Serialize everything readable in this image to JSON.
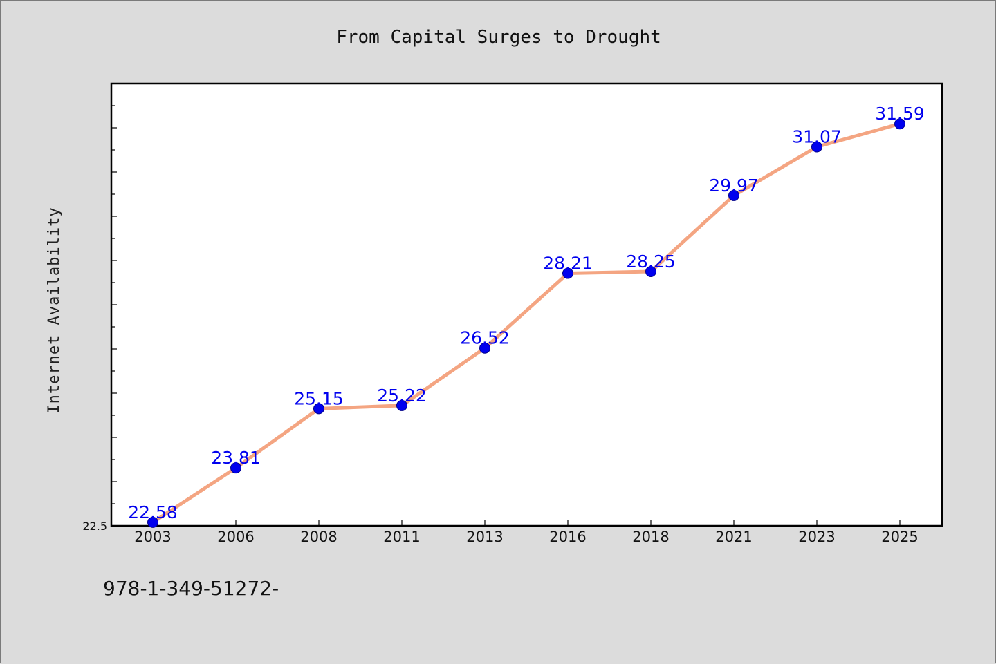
{
  "footer_text": "978-1-349-51272-",
  "chart_data": {
    "type": "line",
    "title": "From Capital Surges to Drought",
    "xlabel": "",
    "ylabel": "Internet Availability",
    "categories": [
      "2003",
      "2006",
      "2008",
      "2011",
      "2013",
      "2016",
      "2018",
      "2021",
      "2023",
      "2025"
    ],
    "series": [
      {
        "values": [
          22.58,
          23.81,
          25.15,
          25.22,
          26.52,
          28.21,
          28.25,
          29.97,
          31.07,
          31.59
        ],
        "line_color": "#f4a582",
        "marker_color": "#0000ee"
      }
    ],
    "ylim": [
      22.5,
      32.5
    ],
    "y_tick_labels": [
      "22.5"
    ],
    "data_labels": [
      "22.58",
      "23.81",
      "25.15",
      "25.22",
      "26.52",
      "28.21",
      "28.25",
      "29.97",
      "31.07",
      "31.59"
    ],
    "grid": false,
    "legend": "none"
  }
}
